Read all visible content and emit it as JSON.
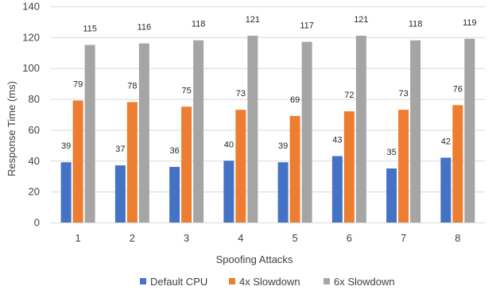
{
  "chart_data": {
    "type": "bar",
    "title": "",
    "xlabel": "Spoofing Attacks",
    "ylabel": "Response Time (ms)",
    "ylim": [
      0,
      140
    ],
    "yticks": [
      0,
      20,
      40,
      60,
      80,
      100,
      120,
      140
    ],
    "grid": "horizontal",
    "legend_position": "bottom",
    "categories": [
      "1",
      "2",
      "3",
      "4",
      "5",
      "6",
      "7",
      "8"
    ],
    "series": [
      {
        "name": "Default CPU",
        "color": "#4472c4",
        "values": [
          39,
          37,
          36,
          40,
          39,
          43,
          35,
          42
        ]
      },
      {
        "name": "4x Slowdown",
        "color": "#ed7d31",
        "values": [
          79,
          78,
          75,
          73,
          69,
          72,
          73,
          76
        ]
      },
      {
        "name": "6x Slowdown",
        "color": "#a5a5a5",
        "values": [
          115,
          116,
          118,
          121,
          117,
          121,
          118,
          119
        ]
      }
    ]
  }
}
